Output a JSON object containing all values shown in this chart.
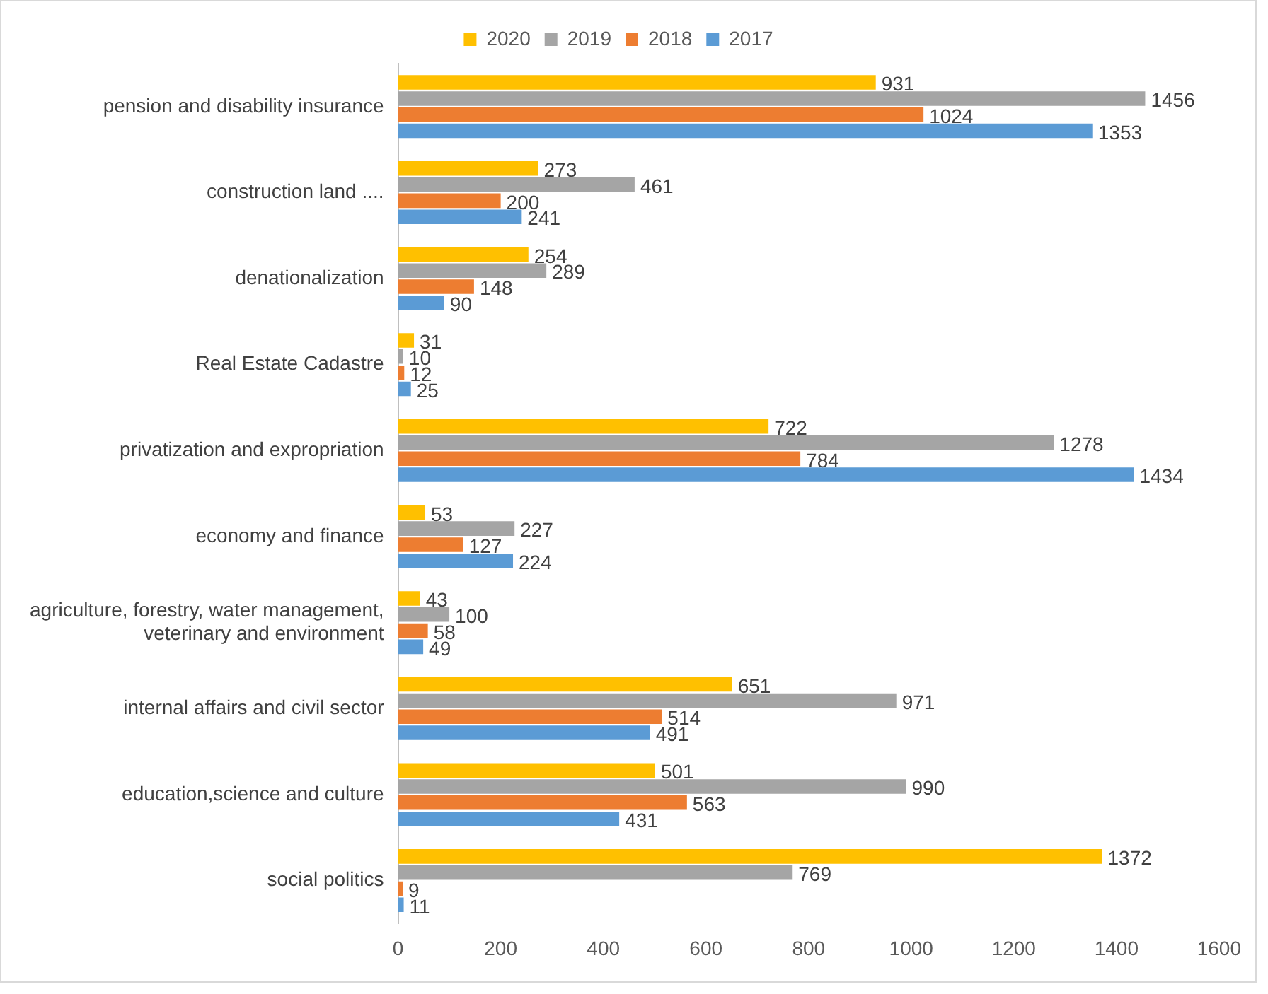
{
  "chart_data": {
    "type": "bar",
    "orientation": "horizontal",
    "categories": [
      "pension and disability insurance",
      "construction land ....",
      "denationalization",
      "Real Estate Cadastre",
      "privatization and expropriation",
      "economy and finance",
      "agriculture, forestry, water management, veterinary and environment",
      "internal affairs and civil sector",
      "education,science and culture",
      "social politics"
    ],
    "series": [
      {
        "name": "2020",
        "color": "#ffc000",
        "values": [
          931,
          273,
          254,
          31,
          722,
          53,
          43,
          651,
          501,
          1372
        ]
      },
      {
        "name": "2019",
        "color": "#a5a5a5",
        "values": [
          1456,
          461,
          289,
          10,
          1278,
          227,
          100,
          971,
          990,
          769
        ]
      },
      {
        "name": "2018",
        "color": "#ed7d31",
        "values": [
          1024,
          200,
          148,
          12,
          784,
          127,
          58,
          514,
          563,
          9
        ]
      },
      {
        "name": "2017",
        "color": "#5b9bd5",
        "values": [
          1353,
          241,
          90,
          25,
          1434,
          224,
          49,
          491,
          431,
          11
        ]
      }
    ],
    "xlim": [
      0,
      1600
    ],
    "xticks": [
      0,
      200,
      400,
      600,
      800,
      1000,
      1200,
      1400,
      1600
    ],
    "grid": false,
    "legend": "top",
    "data_labels": true
  }
}
